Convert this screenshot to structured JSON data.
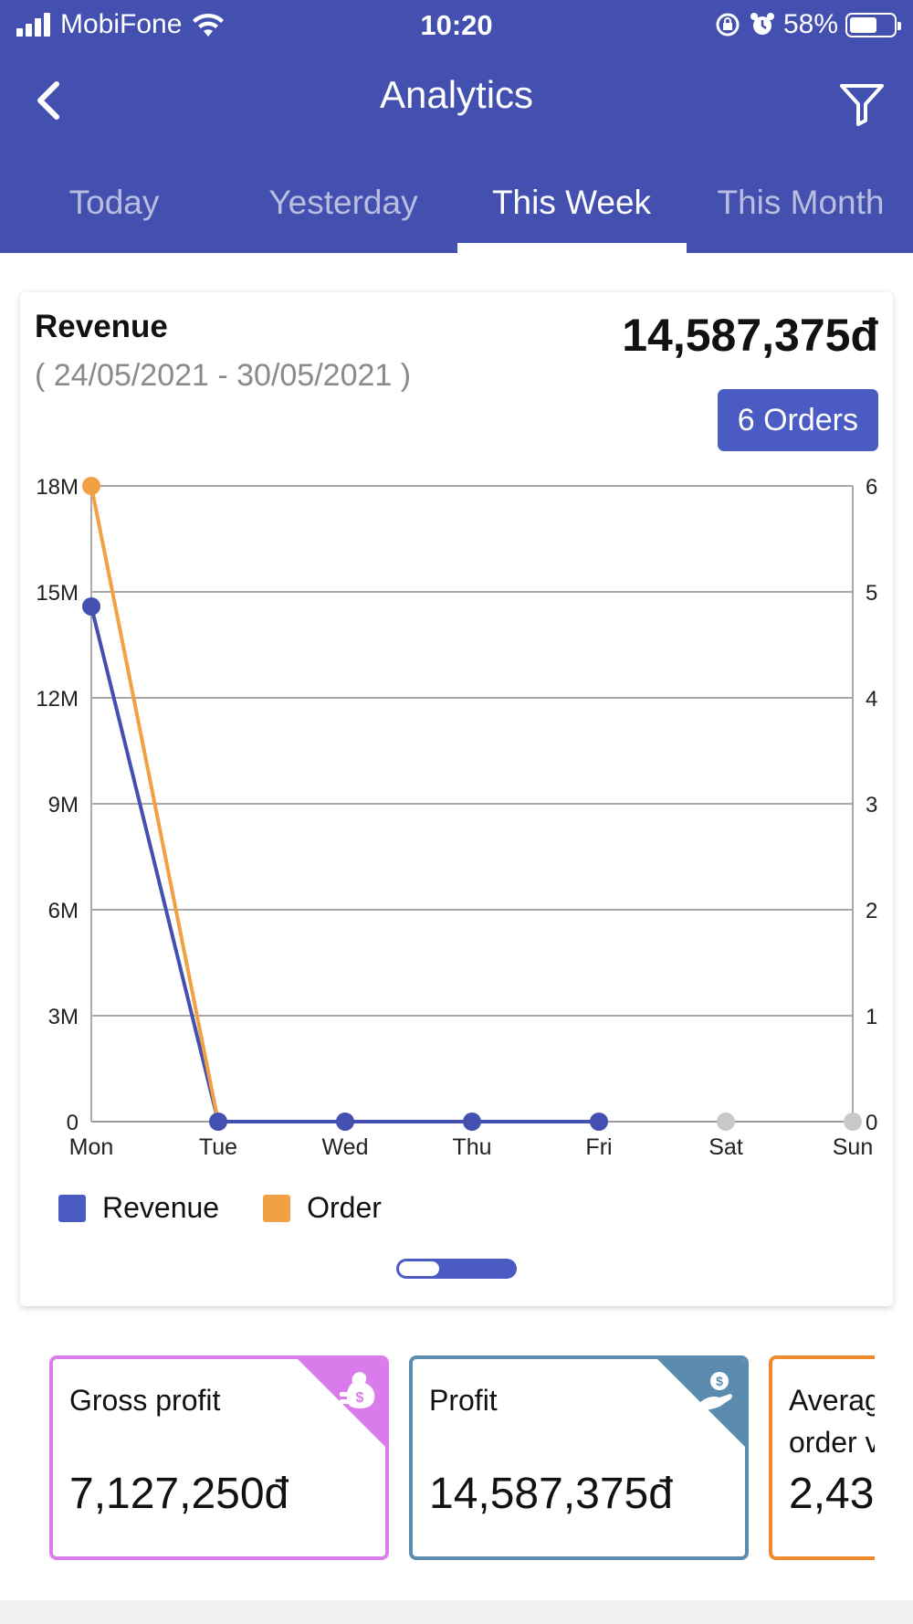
{
  "status_bar": {
    "carrier": "MobiFone",
    "time": "10:20",
    "battery": "58%"
  },
  "nav": {
    "title": "Analytics",
    "back_icon": "chevron-left-icon",
    "filter_icon": "funnel-icon"
  },
  "tabs": [
    {
      "label": "Today"
    },
    {
      "label": "Yesterday"
    },
    {
      "label": "This Week",
      "active": true
    },
    {
      "label": "This Month"
    }
  ],
  "revenue_card": {
    "title": "Revenue",
    "date_range": "( 24/05/2021 - 30/05/2021 )",
    "total": "14,587,375đ",
    "orders_label": "6 Orders"
  },
  "chart_data": {
    "type": "line",
    "categories": [
      "Mon",
      "Tue",
      "Wed",
      "Thu",
      "Fri",
      "Sat",
      "Sun"
    ],
    "y_left_ticks": [
      "0",
      "3M",
      "6M",
      "9M",
      "12M",
      "15M",
      "18M"
    ],
    "y_right_ticks": [
      "0",
      "1",
      "2",
      "3",
      "4",
      "5",
      "6"
    ],
    "ylim_left": [
      0,
      18000000
    ],
    "ylim_right": [
      0,
      6
    ],
    "grid": true,
    "series": [
      {
        "name": "Revenue",
        "axis": "left",
        "color": "#4350AF",
        "values": [
          14587375,
          0,
          0,
          0,
          0,
          null,
          null
        ]
      },
      {
        "name": "Order",
        "axis": "right",
        "color": "#F2A044",
        "values": [
          6,
          0,
          null,
          null,
          null,
          null,
          null
        ]
      }
    ],
    "future_point_color": "#c8c8c8",
    "legend_position": "bottom-left"
  },
  "stats": [
    {
      "label": "Gross profit",
      "value": "7,127,250đ",
      "color": "#D97BEA",
      "icon": "money-bag-icon"
    },
    {
      "label": "Profit",
      "value": "14,587,375đ",
      "color": "#5B8BAF",
      "icon": "hand-money-icon"
    },
    {
      "label": "Average order value",
      "value": "2,43",
      "color": "#F08A2C",
      "icon": "cart-icon"
    }
  ]
}
